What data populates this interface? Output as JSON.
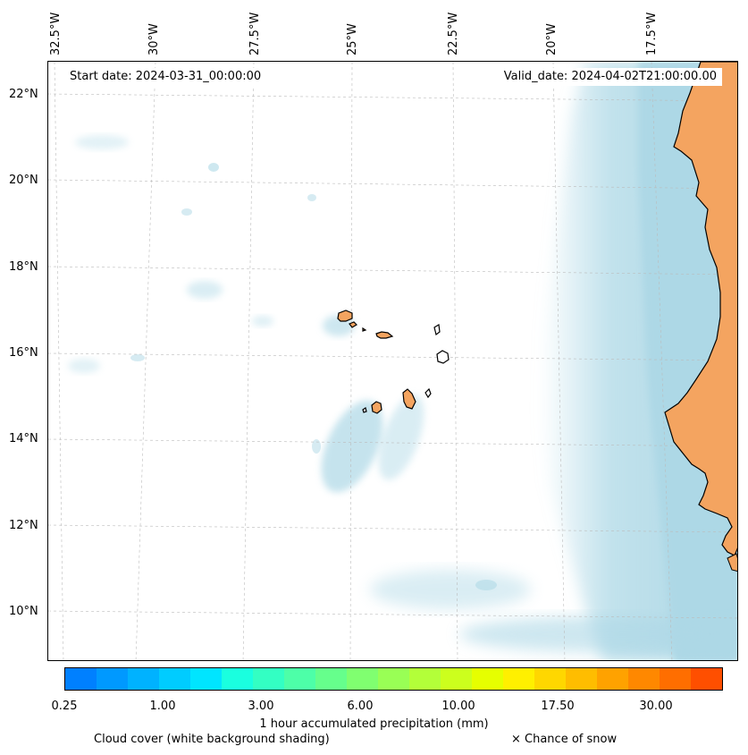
{
  "map": {
    "start_date": "Start date: 2024-03-31_00:00:00",
    "valid_date": "Valid_date: 2024-04-02T21:00:00.00",
    "longitude_labels": [
      "32.5°W",
      "30°W",
      "27.5°W",
      "25°W",
      "22.5°W",
      "20°W",
      "17.5°W"
    ],
    "latitude_labels": [
      "22°N",
      "20°N",
      "18°N",
      "16°N",
      "14°N",
      "12°N",
      "10°N"
    ],
    "colors": {
      "ocean_cloud": "#add8e6",
      "land": "#f4a460",
      "coastline": "#000000",
      "gridline": "#bbbbbb"
    }
  },
  "colorbar": {
    "title": "1 hour accumulated precipitation (mm)",
    "tick_labels": [
      "0.25",
      "1.00",
      "3.00",
      "6.00",
      "10.00",
      "17.50",
      "30.00"
    ],
    "colors": [
      "#0080ff",
      "#0099ff",
      "#00b2ff",
      "#00ccff",
      "#00e5ff",
      "#1affdf",
      "#33ffc3",
      "#4dffa8",
      "#66ff8c",
      "#80ff70",
      "#99ff55",
      "#b3ff39",
      "#ccff1d",
      "#e6ff00",
      "#fff000",
      "#ffd700",
      "#ffbd00",
      "#ffa200",
      "#ff8800",
      "#ff6e00",
      "#ff4f00"
    ]
  },
  "legend": {
    "cloud": "Cloud cover (white background shading)",
    "snow": "× Chance of snow"
  }
}
